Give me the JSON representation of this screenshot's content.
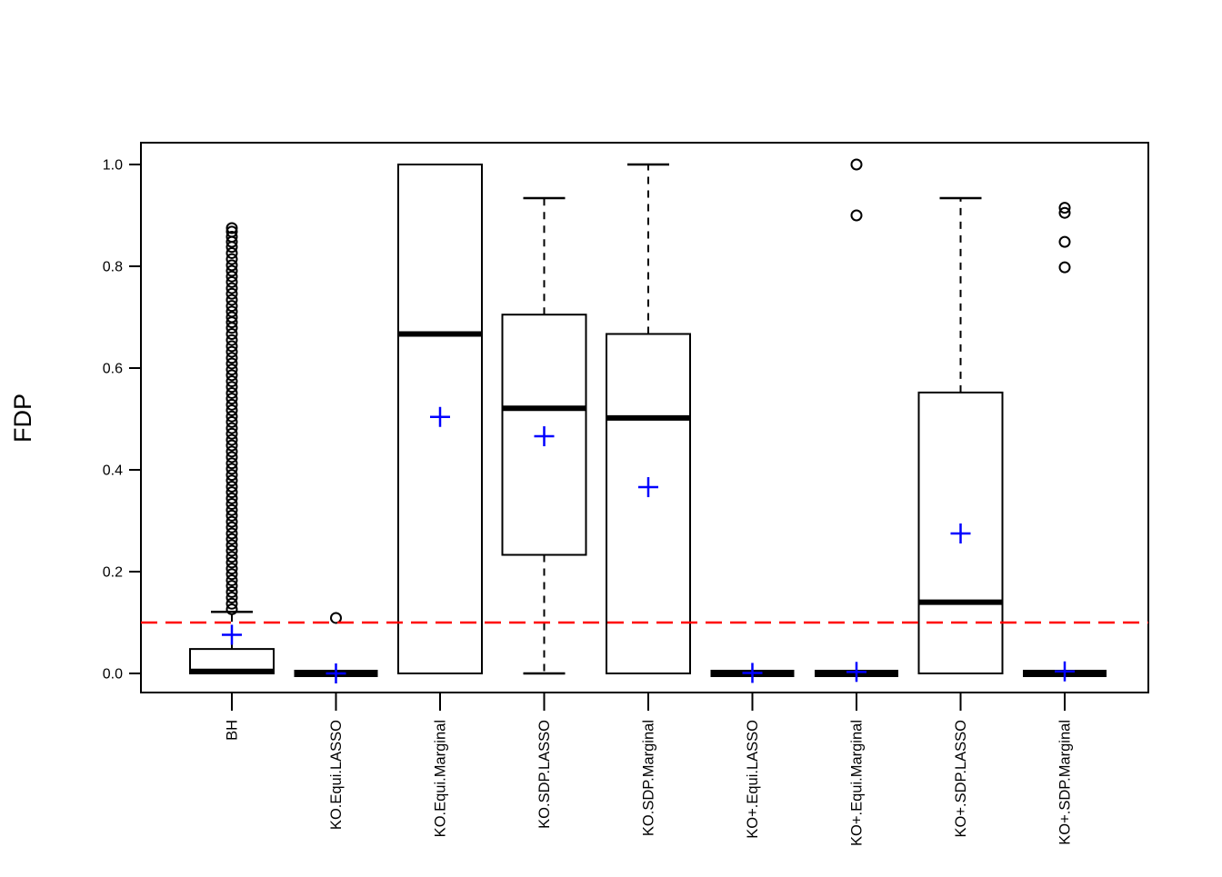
{
  "figure": {
    "y_axis_title": "FDP"
  },
  "chart_data": {
    "type": "boxplot",
    "title": "",
    "xlabel": "",
    "ylabel": "FDP",
    "ylim": [
      0,
      1
    ],
    "grid": false,
    "legend": "none",
    "ytick_labels": [
      "0.0",
      "0.2",
      "0.4",
      "0.6",
      "0.8",
      "1.0"
    ],
    "ytick_values": [
      0.0,
      0.2,
      0.4,
      0.6,
      0.8,
      1.0
    ],
    "reference_line": {
      "value": 0.1,
      "color": "#FF0000",
      "style": "dashed",
      "meaning": "target FDR level"
    },
    "mean_marker": {
      "symbol": "plus",
      "color": "#0000FF"
    },
    "box_color": "#000000",
    "categories": [
      "BH",
      "KO.Equi.LASSO",
      "KO.Equi.Marginal",
      "KO.SDP.LASSO",
      "KO.SDP.Marginal",
      "KO+.Equi.LASSO",
      "KO+.Equi.Marginal",
      "KO+.SDP.LASSO",
      "KO+.SDP.Marginal"
    ],
    "groups": [
      {
        "label": "BH",
        "q1": 0.0,
        "median": 0.004,
        "q3": 0.048,
        "whisker_low": 0.0,
        "whisker_high": 0.121,
        "mean": 0.076,
        "outliers": [
          0.875,
          0.868,
          0.858,
          0.848,
          0.838,
          0.826,
          0.814,
          0.802,
          0.791,
          0.78,
          0.769,
          0.757,
          0.746,
          0.734,
          0.722,
          0.711,
          0.7,
          0.69,
          0.679,
          0.667,
          0.655,
          0.643,
          0.632,
          0.62,
          0.609,
          0.597,
          0.586,
          0.574,
          0.563,
          0.551,
          0.54,
          0.528,
          0.517,
          0.505,
          0.494,
          0.482,
          0.471,
          0.459,
          0.448,
          0.436,
          0.425,
          0.413,
          0.402,
          0.39,
          0.379,
          0.367,
          0.356,
          0.344,
          0.333,
          0.321,
          0.31,
          0.298,
          0.287,
          0.275,
          0.264,
          0.252,
          0.241,
          0.229,
          0.218,
          0.206,
          0.195,
          0.183,
          0.172,
          0.16,
          0.149,
          0.137,
          0.126
        ]
      },
      {
        "label": "KO.Equi.LASSO",
        "q1": 0.0,
        "median": 0.0,
        "q3": 0.0,
        "whisker_low": 0.0,
        "whisker_high": 0.0,
        "mean": 0.0,
        "outliers": [
          0.109
        ]
      },
      {
        "label": "KO.Equi.Marginal",
        "q1": 0.0,
        "median": 0.667,
        "q3": 1.0,
        "whisker_low": 0.0,
        "whisker_high": 1.0,
        "mean": 0.504,
        "outliers": []
      },
      {
        "label": "KO.SDP.LASSO",
        "q1": 0.233,
        "median": 0.521,
        "q3": 0.705,
        "whisker_low": 0.0,
        "whisker_high": 0.934,
        "mean": 0.466,
        "outliers": []
      },
      {
        "label": "KO.SDP.Marginal",
        "q1": 0.0,
        "median": 0.502,
        "q3": 0.667,
        "whisker_low": 0.0,
        "whisker_high": 1.0,
        "mean": 0.366,
        "outliers": []
      },
      {
        "label": "KO+.Equi.LASSO",
        "q1": 0.0,
        "median": 0.0,
        "q3": 0.0,
        "whisker_low": 0.0,
        "whisker_high": 0.0,
        "mean": 0.001,
        "outliers": []
      },
      {
        "label": "KO+.Equi.Marginal",
        "q1": 0.0,
        "median": 0.0,
        "q3": 0.0,
        "whisker_low": 0.0,
        "whisker_high": 0.0,
        "mean": 0.003,
        "outliers": [
          0.9,
          1.0
        ]
      },
      {
        "label": "KO+.SDP.LASSO",
        "q1": 0.0,
        "median": 0.14,
        "q3": 0.552,
        "whisker_low": 0.0,
        "whisker_high": 0.934,
        "mean": 0.275,
        "outliers": []
      },
      {
        "label": "KO+.SDP.Marginal",
        "q1": 0.0,
        "median": 0.0,
        "q3": 0.0,
        "whisker_low": 0.0,
        "whisker_high": 0.0,
        "mean": 0.004,
        "outliers": [
          0.798,
          0.848,
          0.905,
          0.915
        ]
      }
    ]
  }
}
